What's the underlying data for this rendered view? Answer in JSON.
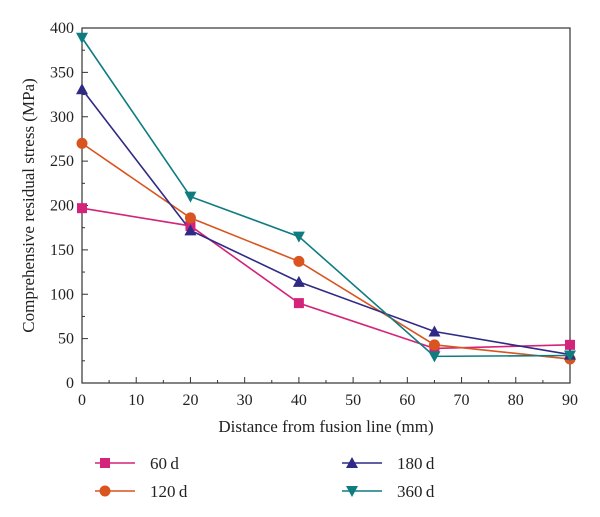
{
  "chart_data": {
    "type": "line",
    "xlabel": "Distance from fusion line (mm)",
    "ylabel": "Comprehensive residual stress (MPa)",
    "xlim": [
      0,
      90
    ],
    "ylim": [
      0,
      400
    ],
    "xticks": [
      0,
      10,
      20,
      30,
      40,
      50,
      60,
      70,
      80,
      90
    ],
    "yticks": [
      0,
      50,
      100,
      150,
      200,
      250,
      300,
      350,
      400
    ],
    "grid": false,
    "legend_position": "bottom",
    "x": [
      0,
      20,
      40,
      65,
      90
    ],
    "series": [
      {
        "name": "60 d",
        "color": "#d4237a",
        "marker": "square",
        "values": [
          197,
          177,
          90,
          39,
          43
        ]
      },
      {
        "name": "120 d",
        "color": "#d9541e",
        "marker": "circle",
        "values": [
          270,
          186,
          137,
          43,
          27
        ]
      },
      {
        "name": "180 d",
        "color": "#2e2a85",
        "marker": "triangle-up",
        "values": [
          331,
          172,
          114,
          58,
          32
        ]
      },
      {
        "name": "360 d",
        "color": "#0f7c80",
        "marker": "triangle-down",
        "values": [
          389,
          210,
          165,
          30,
          31
        ]
      }
    ]
  }
}
